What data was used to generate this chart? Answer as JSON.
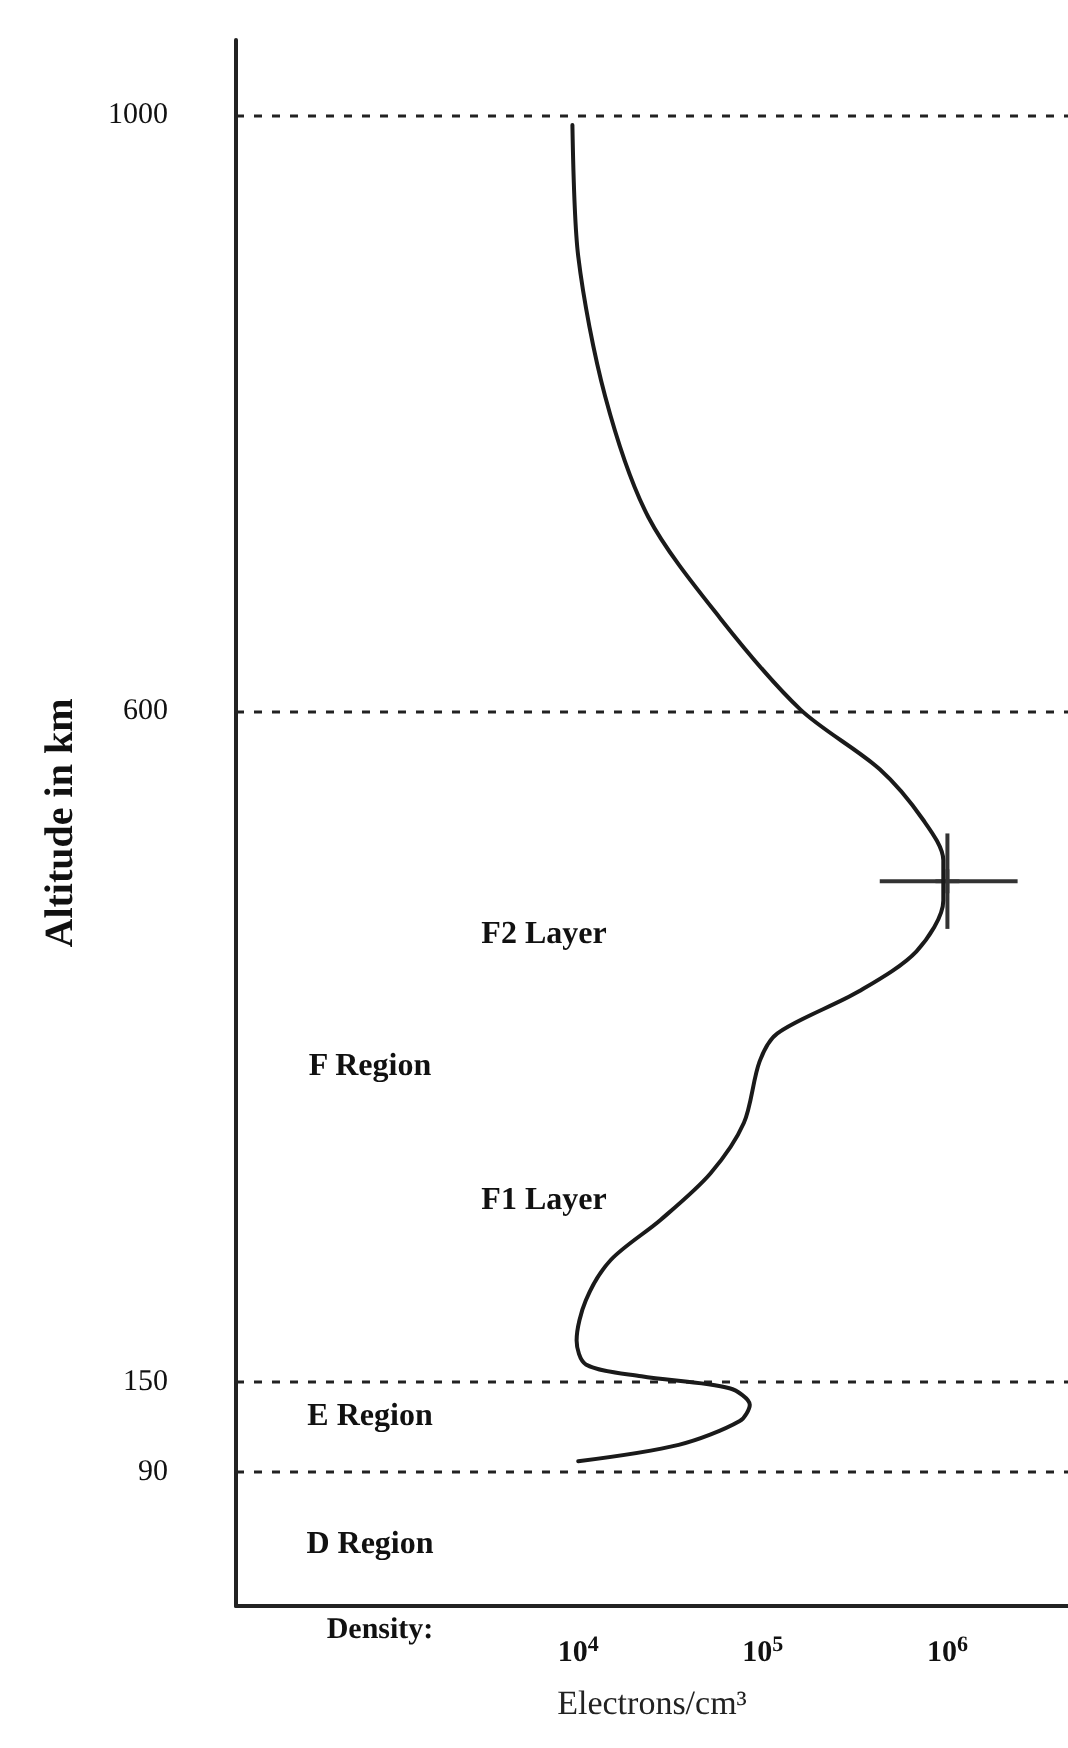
{
  "chart_data": {
    "type": "line",
    "ylabel": "Altitude in km",
    "xlabel": "Electrons/cm³",
    "log": "x",
    "grid": "y",
    "xlim": [
      140,
      4500000
    ],
    "xticks": [
      {
        "value": 10000,
        "label": "10$^{4}$"
      },
      {
        "value": 100000,
        "label": "10$^{5}$"
      },
      {
        "value": 1000000,
        "label": "10$^{6}$"
      }
    ],
    "ylim": [
      0,
      1050
    ],
    "yticks": [
      90,
      150,
      600,
      1000
    ],
    "series": [
      {
        "color": "#1a1a1a",
        "marker": "none",
        "x": [
          10000,
          35000,
          75000,
          85000,
          66000,
          22000,
          11000,
          9800,
          11000,
          15000,
          28000,
          52000,
          79000,
          96000,
          120000,
          330000,
          680000,
          950000,
          950000,
          740000,
          430000,
          160000,
          59000,
          24000,
          14000,
          10000,
          9300
        ],
        "values": [
          97,
          108,
          124,
          135,
          146,
          154,
          162,
          178,
          205,
          232,
          259,
          290,
          324,
          365,
          384,
          412,
          439,
          473,
          500,
          527,
          561,
          601,
          662,
          730,
          811,
          905,
          993
        ]
      },
      {
        "type": "scatter",
        "color": "#333333",
        "marker": "cross",
        "x": [
          1000000
        ],
        "values": [
          486
        ],
        "errors": [
          [
            454,
            518
          ]
        ],
        "xerrors": [
          [
            430000,
            2400000
          ]
        ]
      }
    ],
    "annotations": [
      "Density:",
      "F2 Layer",
      "F Region",
      "F1 Layer",
      "E Region",
      "D Region"
    ]
  }
}
